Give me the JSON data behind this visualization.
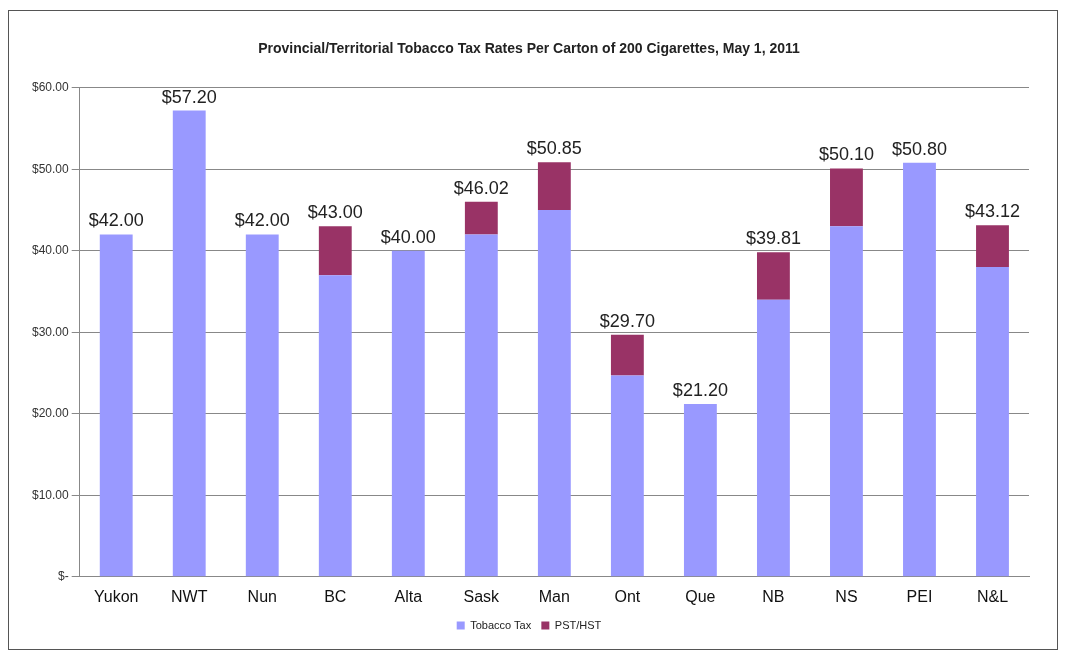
{
  "chart_data": {
    "type": "bar",
    "title": "Provincial/Territorial Tobacco Tax Rates Per Carton of 200 Cigarettes, May 1, 2011",
    "categories": [
      "Yukon",
      "NWT",
      "Nun",
      "BC",
      "Alta",
      "Sask",
      "Man",
      "Ont",
      "Que",
      "NB",
      "NS",
      "PEI",
      "N&L"
    ],
    "series": [
      {
        "name": "Tobacco Tax",
        "color": "#9999ff",
        "values": [
          42,
          57.2,
          42,
          37,
          40,
          42,
          45,
          24.7,
          21.2,
          34,
          43,
          50.8,
          38
        ]
      },
      {
        "name": "PST/HST",
        "color": "#993366",
        "values": [
          null,
          null,
          null,
          6,
          null,
          4.02,
          5.85,
          5,
          null,
          5.81,
          7.1,
          null,
          5.12
        ]
      }
    ],
    "stacked": true,
    "totals": [
      "$42.00",
      "$57.20",
      "$42.00",
      "$43.00",
      "$40.00",
      "$46.02",
      "$50.85",
      "$29.70",
      "$21.20",
      "$39.81",
      "$50.10",
      "$50.80",
      "$43.12"
    ],
    "ylim": [
      0,
      60
    ],
    "yticks": [
      {
        "value": 0,
        "label": "$-"
      },
      {
        "value": 10,
        "label": "$10.00"
      },
      {
        "value": 20,
        "label": "$20.00"
      },
      {
        "value": 30,
        "label": "$30.00"
      },
      {
        "value": 40,
        "label": "$40.00"
      },
      {
        "value": 50,
        "label": "$50.00"
      },
      {
        "value": 60,
        "label": "$60.00"
      }
    ],
    "grid": "y",
    "legend": "bottom"
  }
}
